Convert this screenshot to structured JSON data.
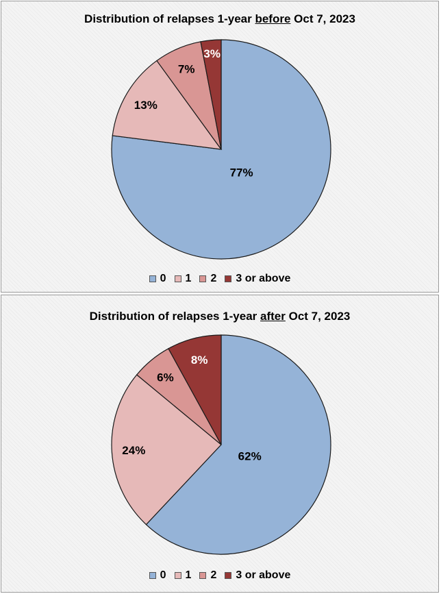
{
  "chart_data": [
    {
      "type": "pie",
      "title_pre": "Distribution of relapses 1-year ",
      "title_emph": "before",
      "title_post": " Oct 7, 2023",
      "categories": [
        "0",
        "1",
        "2",
        "3 or above"
      ],
      "values": [
        77,
        13,
        7,
        3
      ],
      "labels": [
        "77%",
        "13%",
        "7%",
        "3%"
      ],
      "colors": [
        "#95b3d7",
        "#e6b9b8",
        "#d99694",
        "#953735"
      ],
      "label_colors": [
        "#000000",
        "#000000",
        "#000000",
        "#ffffff"
      ],
      "legend_position": "bottom"
    },
    {
      "type": "pie",
      "title_pre": "Distribution of relapses 1-year ",
      "title_emph": "after",
      "title_post": " Oct 7, 2023",
      "categories": [
        "0",
        "1",
        "2",
        "3 or above"
      ],
      "values": [
        62,
        24,
        6,
        8
      ],
      "labels": [
        "62%",
        "24%",
        "6%",
        "8%"
      ],
      "colors": [
        "#95b3d7",
        "#e6b9b8",
        "#d99694",
        "#953735"
      ],
      "label_colors": [
        "#000000",
        "#000000",
        "#000000",
        "#ffffff"
      ],
      "legend_position": "bottom"
    }
  ]
}
